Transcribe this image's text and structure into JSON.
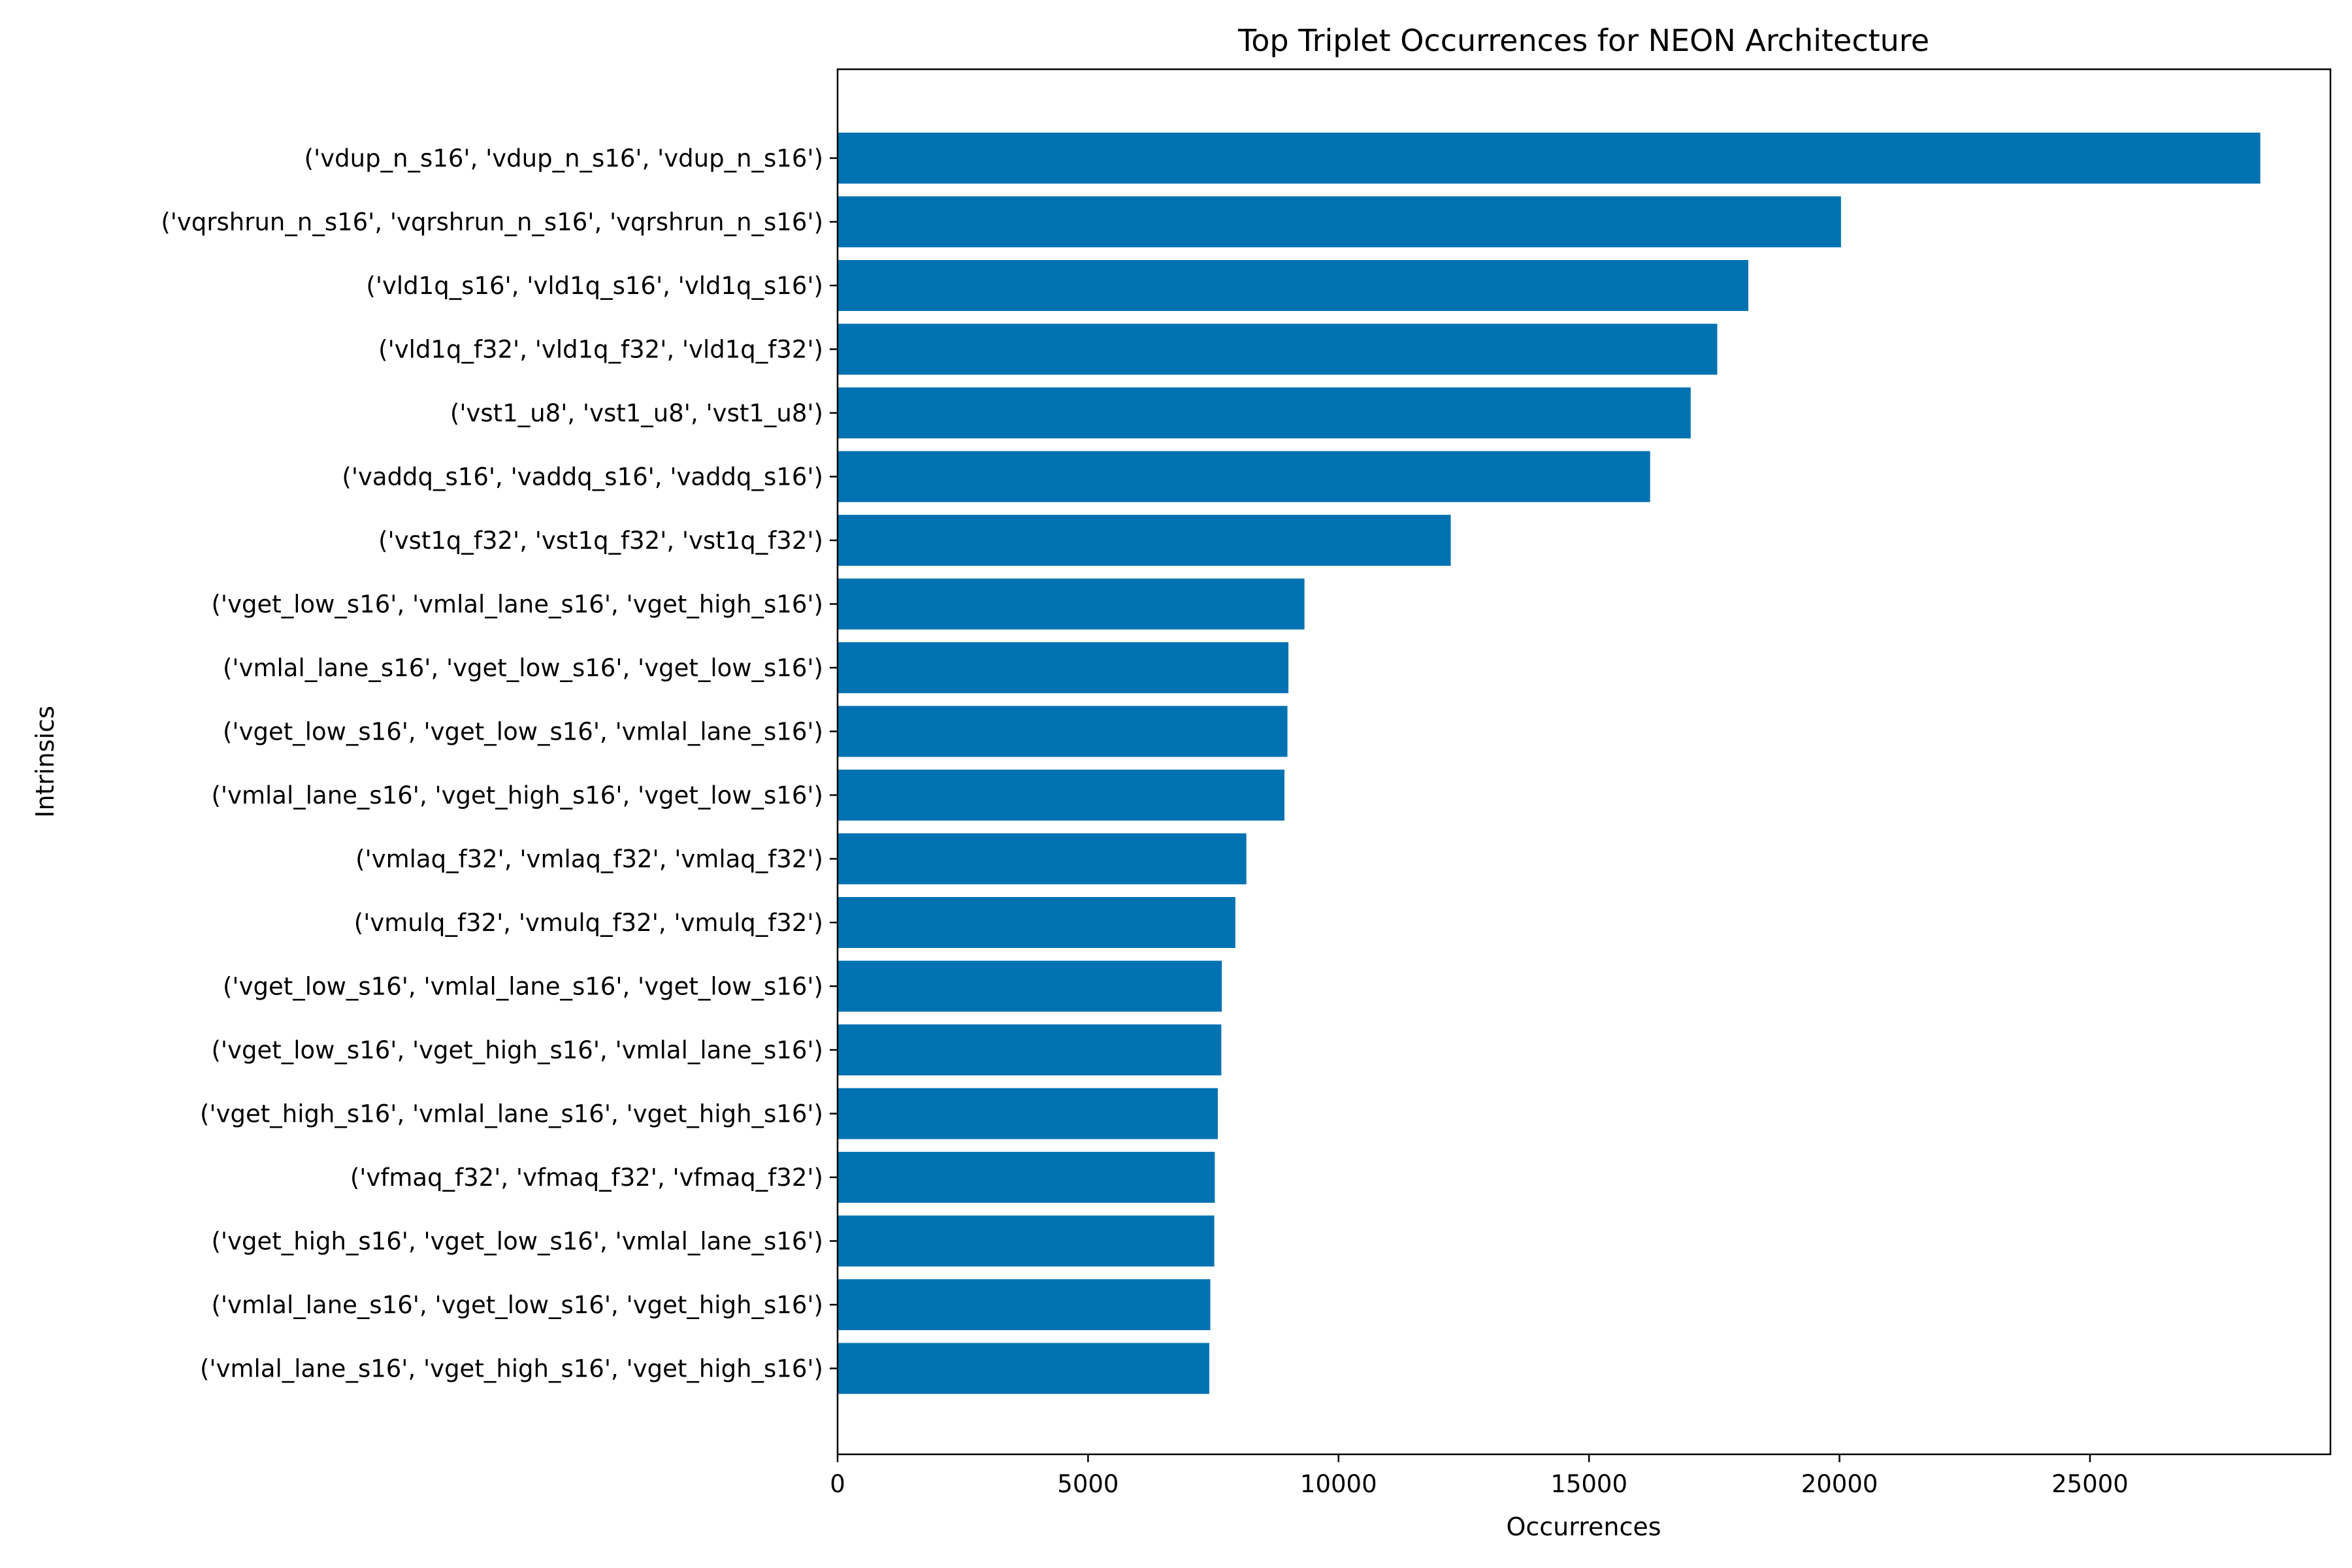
{
  "chart_data": {
    "type": "bar",
    "orientation": "horizontal",
    "title": "Top Triplet Occurrences for NEON Architecture",
    "xlabel": "Occurrences",
    "ylabel": "Intrinsics",
    "xlim": [
      0,
      29800
    ],
    "xticks": [
      0,
      5000,
      10000,
      15000,
      20000,
      25000
    ],
    "xtick_labels": [
      "0",
      "5000",
      "10000",
      "15000",
      "20000",
      "25000"
    ],
    "grid": false,
    "bar_color": "#0072b2",
    "categories": [
      "('vdup_n_s16', 'vdup_n_s16', 'vdup_n_s16')",
      "('vqrshrun_n_s16', 'vqrshrun_n_s16', 'vqrshrun_n_s16')",
      "('vld1q_s16', 'vld1q_s16', 'vld1q_s16')",
      "('vld1q_f32', 'vld1q_f32', 'vld1q_f32')",
      "('vst1_u8', 'vst1_u8', 'vst1_u8')",
      "('vaddq_s16', 'vaddq_s16', 'vaddq_s16')",
      "('vst1q_f32', 'vst1q_f32', 'vst1q_f32')",
      "('vget_low_s16', 'vmlal_lane_s16', 'vget_high_s16')",
      "('vmlal_lane_s16', 'vget_low_s16', 'vget_low_s16')",
      "('vget_low_s16', 'vget_low_s16', 'vmlal_lane_s16')",
      "('vmlal_lane_s16', 'vget_high_s16', 'vget_low_s16')",
      "('vmlaq_f32', 'vmlaq_f32', 'vmlaq_f32')",
      "('vmulq_f32', 'vmulq_f32', 'vmulq_f32')",
      "('vget_low_s16', 'vmlal_lane_s16', 'vget_low_s16')",
      "('vget_low_s16', 'vget_high_s16', 'vmlal_lane_s16')",
      "('vget_high_s16', 'vmlal_lane_s16', 'vget_high_s16')",
      "('vfmaq_f32', 'vfmaq_f32', 'vfmaq_f32')",
      "('vget_high_s16', 'vget_low_s16', 'vmlal_lane_s16')",
      "('vmlal_lane_s16', 'vget_low_s16', 'vget_high_s16')",
      "('vmlal_lane_s16', 'vget_high_s16', 'vget_high_s16')"
    ],
    "values": [
      28400,
      20030,
      18180,
      17560,
      17030,
      16220,
      12240,
      9320,
      9000,
      8980,
      8920,
      8160,
      7940,
      7670,
      7660,
      7590,
      7530,
      7520,
      7440,
      7420
    ]
  }
}
